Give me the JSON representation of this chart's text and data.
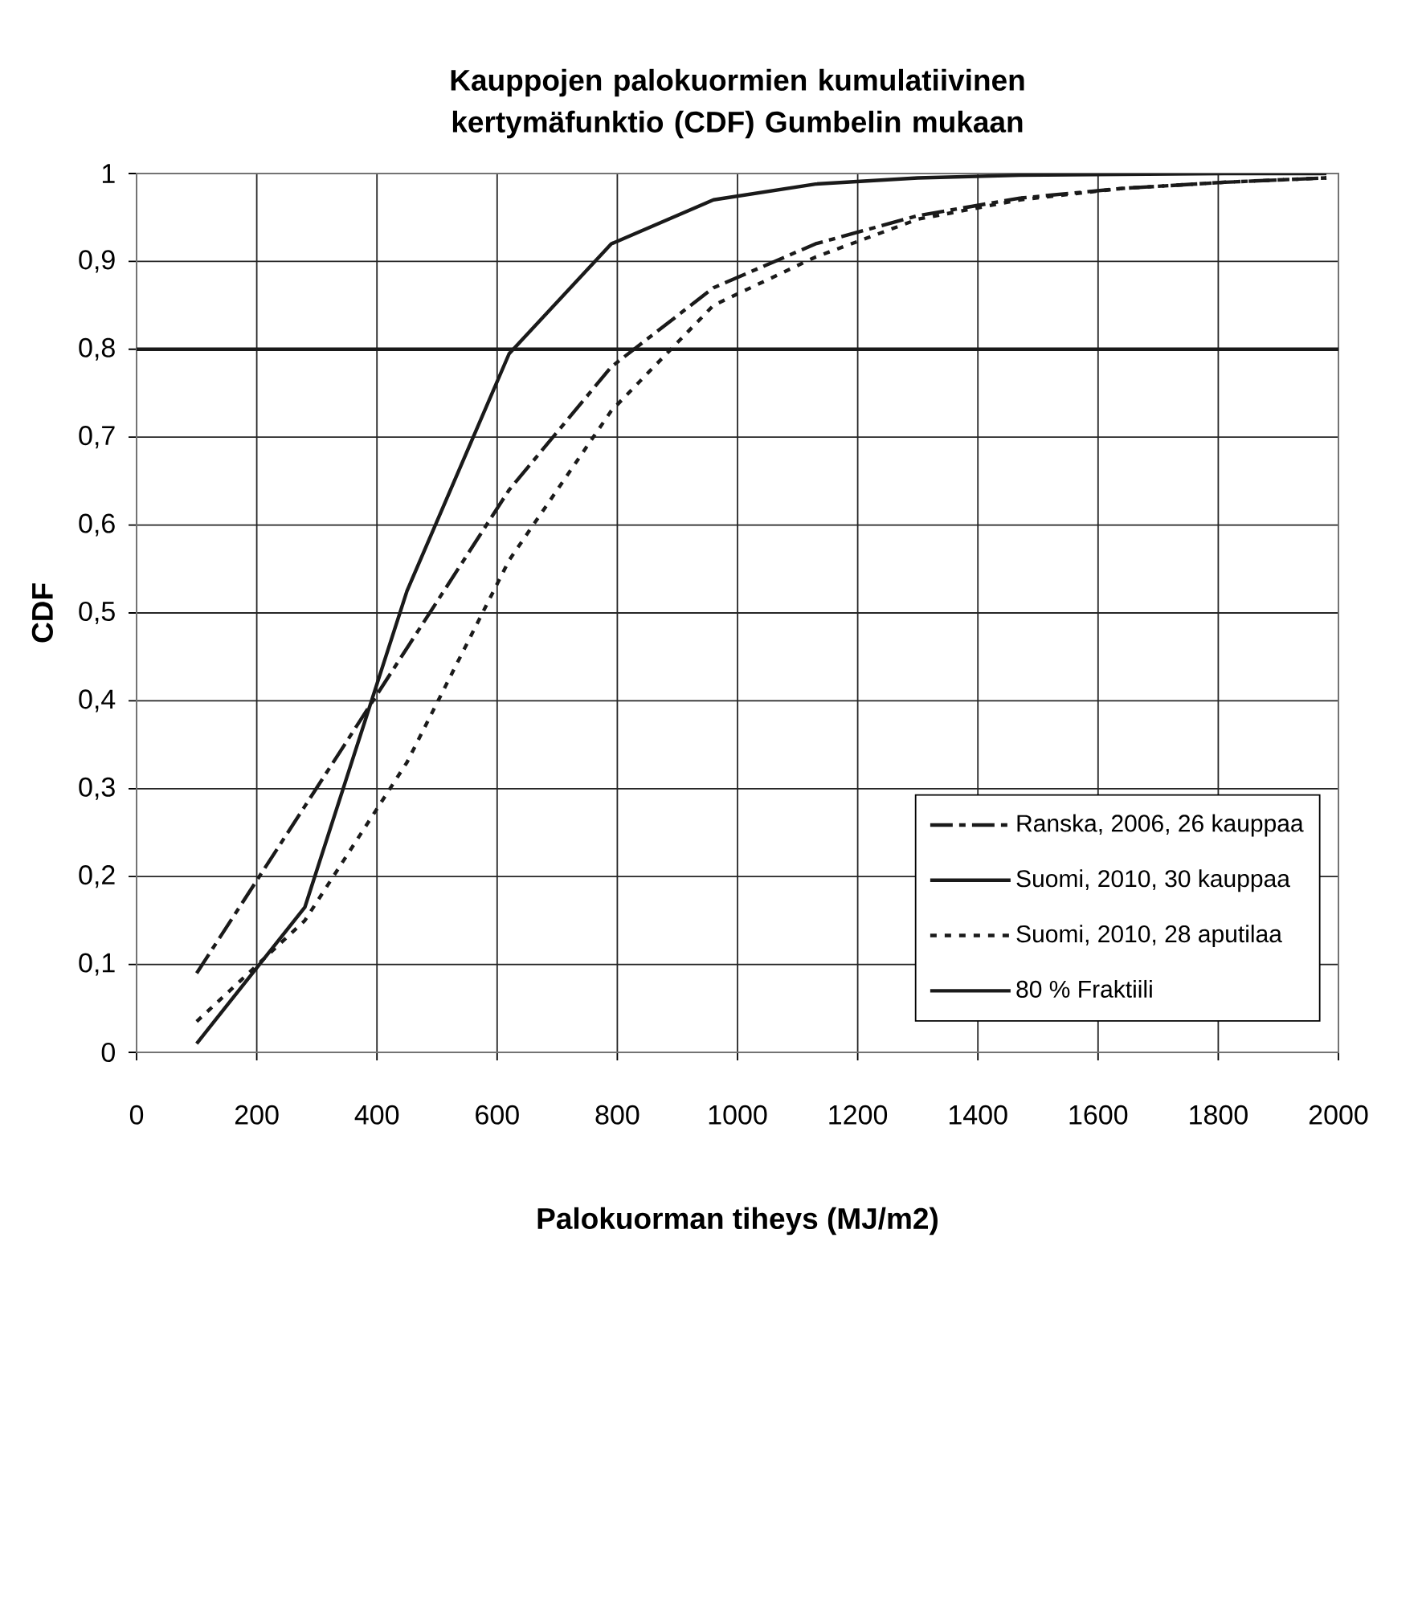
{
  "chart_data": {
    "type": "line",
    "title": "Kauppojen palokuormien kumulatiivinen kertymäfunktio (CDF) Gumbelin mukaan",
    "xlabel": "Palokuorman tiheys (MJ/m2)",
    "ylabel": "CDF",
    "x": [
      100,
      280,
      450,
      620,
      790,
      960,
      1130,
      1300,
      1470,
      1640,
      1810,
      1980
    ],
    "series": [
      {
        "name": "Ranska, 2006, 26 kauppaa",
        "color": "#1a1a1a",
        "line_style": "dashed",
        "values": [
          0.09,
          0.28,
          0.46,
          0.64,
          0.78,
          0.87,
          0.92,
          0.952,
          0.972,
          0.983,
          0.99,
          0.995
        ]
      },
      {
        "name": "Suomi, 2010, 30 kauppaa",
        "color": "#1a1a1a",
        "line_style": "solid",
        "values": [
          0.01,
          0.165,
          0.525,
          0.795,
          0.92,
          0.97,
          0.988,
          0.995,
          0.998,
          0.999,
          1,
          1
        ]
      },
      {
        "name": "Suomi, 2010, 28 aputilaa",
        "color": "#1a1a1a",
        "line_style": "dotted",
        "values": [
          0.035,
          0.15,
          0.33,
          0.56,
          0.73,
          0.85,
          0.905,
          0.948,
          0.97,
          0.983,
          0.99,
          0.995
        ]
      }
    ],
    "ref_lines": [
      {
        "axis": "y",
        "value": 0.8,
        "label": "80 % Fraktiili",
        "color": "#1a1a1a",
        "line_style": "solid"
      }
    ],
    "xlim": [
      0,
      2000
    ],
    "ylim": [
      0,
      1
    ],
    "xticks": [
      0,
      200,
      400,
      600,
      800,
      1000,
      1200,
      1400,
      1600,
      1800,
      2000
    ],
    "yticks": [
      0,
      {
        "value": 0.1,
        "label": "0,1"
      },
      {
        "value": 0.2,
        "label": "0,2"
      },
      {
        "value": 0.3,
        "label": "0,3"
      },
      {
        "value": 0.4,
        "label": "0,4"
      },
      {
        "value": 0.5,
        "label": "0,5"
      },
      {
        "value": 0.6,
        "label": "0,6"
      },
      {
        "value": 0.7,
        "label": "0,7"
      },
      {
        "value": 0.8,
        "label": "0,8"
      },
      {
        "value": 0.9,
        "label": "0,9"
      },
      1
    ],
    "grid": true,
    "legend": "bottom right",
    "marker": "none"
  }
}
